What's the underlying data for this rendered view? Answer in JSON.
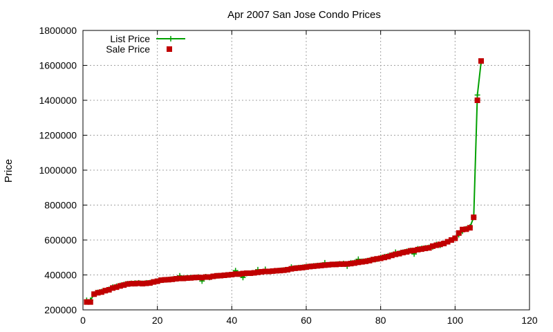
{
  "chart_data": {
    "type": "scatter",
    "title": "Apr 2007 San Jose Condo Prices",
    "xlabel": "",
    "ylabel": "Price",
    "xlim": [
      0,
      120
    ],
    "ylim": [
      200000,
      1800000
    ],
    "x_ticks": [
      "0",
      "20",
      "40",
      "60",
      "80",
      "100",
      "120"
    ],
    "y_ticks": [
      "200000",
      "400000",
      "600000",
      "800000",
      "1000000",
      "1200000",
      "1400000",
      "1600000",
      "1800000"
    ],
    "grid": true,
    "legend_position": "top-left",
    "series": [
      {
        "name": "List Price",
        "style": "line-with-plus-markers",
        "color": "#00a000",
        "x": [
          1,
          2,
          3,
          4,
          5,
          6,
          7,
          8,
          9,
          10,
          11,
          12,
          13,
          14,
          15,
          16,
          17,
          18,
          19,
          20,
          21,
          22,
          23,
          24,
          25,
          26,
          27,
          28,
          29,
          30,
          31,
          32,
          33,
          34,
          35,
          36,
          37,
          38,
          39,
          40,
          41,
          42,
          43,
          44,
          45,
          46,
          47,
          48,
          49,
          50,
          51,
          52,
          53,
          54,
          55,
          56,
          57,
          58,
          59,
          60,
          61,
          62,
          63,
          64,
          65,
          66,
          67,
          68,
          69,
          70,
          71,
          72,
          73,
          74,
          75,
          76,
          77,
          78,
          79,
          80,
          81,
          82,
          83,
          84,
          85,
          86,
          87,
          88,
          89,
          90,
          91,
          92,
          93,
          94,
          95,
          96,
          97,
          98,
          99,
          100,
          101,
          102,
          103,
          104,
          105,
          106,
          107
        ],
        "values": [
          255000,
          255000,
          290000,
          300000,
          305000,
          310000,
          318000,
          330000,
          335000,
          340000,
          345000,
          350000,
          352000,
          354000,
          355000,
          352000,
          355000,
          356000,
          360000,
          365000,
          370000,
          372000,
          374000,
          376000,
          378000,
          395000,
          382000,
          384000,
          385000,
          386000,
          388000,
          365000,
          390000,
          385000,
          392000,
          395000,
          396000,
          398000,
          400000,
          402000,
          425000,
          405000,
          385000,
          408000,
          410000,
          412000,
          430000,
          418000,
          432000,
          420000,
          422000,
          424000,
          426000,
          428000,
          430000,
          445000,
          440000,
          442000,
          444000,
          448000,
          450000,
          452000,
          454000,
          456000,
          470000,
          458000,
          460000,
          462000,
          464000,
          466000,
          450000,
          470000,
          472000,
          490000,
          478000,
          480000,
          484000,
          488000,
          490000,
          500000,
          505000,
          510000,
          515000,
          530000,
          525000,
          530000,
          535000,
          540000,
          520000,
          550000,
          552000,
          555000,
          558000,
          560000,
          575000,
          570000,
          580000,
          590000,
          600000,
          610000,
          630000,
          650000,
          665000,
          675000,
          730000,
          1430000,
          1620000
        ]
      },
      {
        "name": "Sale Price",
        "style": "square-markers",
        "color": "#c00000",
        "x": [
          1,
          2,
          3,
          4,
          5,
          6,
          7,
          8,
          9,
          10,
          11,
          12,
          13,
          14,
          15,
          16,
          17,
          18,
          19,
          20,
          21,
          22,
          23,
          24,
          25,
          26,
          27,
          28,
          29,
          30,
          31,
          32,
          33,
          34,
          35,
          36,
          37,
          38,
          39,
          40,
          41,
          42,
          43,
          44,
          45,
          46,
          47,
          48,
          49,
          50,
          51,
          52,
          53,
          54,
          55,
          56,
          57,
          58,
          59,
          60,
          61,
          62,
          63,
          64,
          65,
          66,
          67,
          68,
          69,
          70,
          71,
          72,
          73,
          74,
          75,
          76,
          77,
          78,
          79,
          80,
          81,
          82,
          83,
          84,
          85,
          86,
          87,
          88,
          89,
          90,
          91,
          92,
          93,
          94,
          95,
          96,
          97,
          98,
          99,
          100,
          101,
          102,
          103,
          104,
          105,
          106,
          107
        ],
        "values": [
          245000,
          245000,
          290000,
          298000,
          302000,
          310000,
          315000,
          325000,
          330000,
          337000,
          342000,
          348000,
          350000,
          350000,
          352000,
          350000,
          352000,
          354000,
          360000,
          364000,
          370000,
          372000,
          373000,
          375000,
          378000,
          380000,
          380000,
          382000,
          383000,
          385000,
          386000,
          385000,
          388000,
          388000,
          392000,
          395000,
          396000,
          398000,
          400000,
          402000,
          405000,
          405000,
          408000,
          410000,
          410000,
          412000,
          415000,
          418000,
          420000,
          420000,
          422000,
          424000,
          425000,
          427000,
          430000,
          435000,
          438000,
          440000,
          442000,
          445000,
          448000,
          450000,
          452000,
          454000,
          456000,
          458000,
          460000,
          460000,
          462000,
          462000,
          463000,
          465000,
          468000,
          472000,
          475000,
          478000,
          482000,
          488000,
          492000,
          495000,
          500000,
          505000,
          512000,
          518000,
          522000,
          528000,
          532000,
          538000,
          540000,
          545000,
          548000,
          552000,
          555000,
          565000,
          570000,
          575000,
          580000,
          590000,
          600000,
          610000,
          640000,
          660000,
          662000,
          670000,
          730000,
          1400000,
          1625000
        ]
      }
    ]
  }
}
